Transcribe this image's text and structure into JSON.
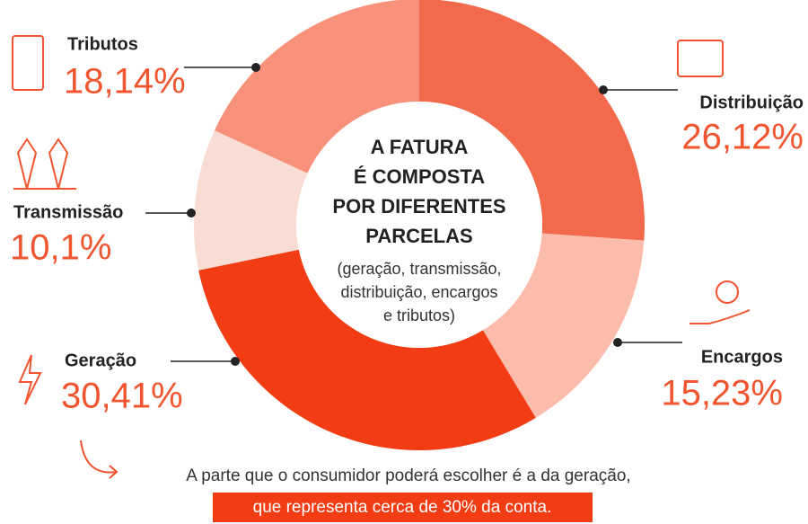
{
  "chart_data": {
    "type": "donut",
    "categories": [
      "Distribuição",
      "Encargos",
      "Geração",
      "Transmissão",
      "Tributos"
    ],
    "values": [
      26.12,
      15.23,
      30.41,
      10.1,
      18.14
    ],
    "value_labels": [
      "26,12%",
      "15,23%",
      "30,41%",
      "10,1%",
      "18,14%"
    ],
    "colors": [
      "#f26a4b",
      "#fbbcac",
      "#f23d14",
      "#f9dcd4",
      "#f7917a"
    ],
    "center_title": [
      "A FATURA",
      "É COMPOSTA",
      "POR DIFERENTES",
      "PARCELAS"
    ],
    "center_subtitle": [
      "(geração, transmissão,",
      "distribuição, encargos",
      "e tributos)"
    ],
    "footer": {
      "line1": "A parte que o consumidor poderá escolher é a da geração,",
      "line2": "que representa cerca de 30% da conta."
    }
  }
}
